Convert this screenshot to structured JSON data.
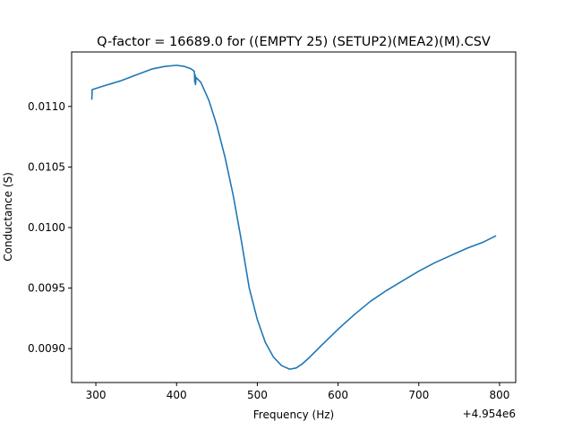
{
  "chart_data": {
    "type": "line",
    "title": "Q-factor = 16689.0 for ((EMPTY 25) (SETUP2)(MEA2)(M).CSV",
    "xlabel": "Frequency (Hz)",
    "ylabel": "Conductance (S)",
    "x_offset_label": "+4.954e6",
    "xlim": [
      270,
      820
    ],
    "ylim": [
      0.00872,
      0.01145
    ],
    "x_ticks": [
      300,
      400,
      500,
      600,
      700,
      800
    ],
    "x_tick_labels": [
      "300",
      "400",
      "500",
      "600",
      "700",
      "800"
    ],
    "y_ticks": [
      0.009,
      0.0095,
      0.01,
      0.0105,
      0.011
    ],
    "y_tick_labels": [
      "0.0090",
      "0.0095",
      "0.0100",
      "0.0105",
      "0.0110"
    ],
    "grid": false,
    "series": [
      {
        "color": "#1f77b4",
        "x": [
          295,
          295.5,
          296,
          310,
          330,
          350,
          370,
          385,
          400,
          410,
          418,
          422,
          422.5,
          423,
          423.5,
          424,
          430,
          440,
          450,
          460,
          470,
          480,
          490,
          500,
          510,
          520,
          530,
          540,
          548,
          555,
          565,
          580,
          600,
          620,
          640,
          660,
          680,
          700,
          720,
          740,
          760,
          780,
          795
        ],
        "y": [
          0.01106,
          0.01114,
          0.01114,
          0.01117,
          0.01121,
          0.01126,
          0.01131,
          0.01133,
          0.01134,
          0.01133,
          0.01131,
          0.01129,
          0.0112,
          0.01126,
          0.01118,
          0.01124,
          0.0112,
          0.01105,
          0.01084,
          0.01058,
          0.01027,
          0.0099,
          0.0095,
          0.00924,
          0.00905,
          0.00893,
          0.00886,
          0.00883,
          0.00884,
          0.00887,
          0.00893,
          0.00903,
          0.00916,
          0.00928,
          0.00939,
          0.00948,
          0.00956,
          0.00964,
          0.00971,
          0.00977,
          0.00983,
          0.00988,
          0.00993
        ]
      }
    ]
  }
}
